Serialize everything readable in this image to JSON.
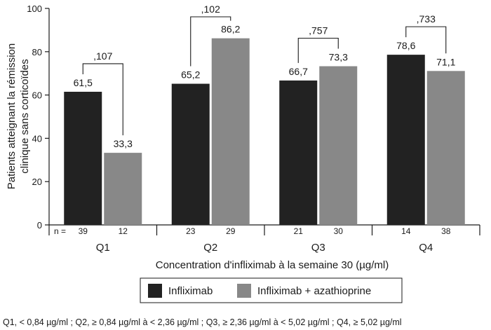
{
  "chart_data": {
    "type": "bar",
    "categories": [
      "Q1",
      "Q2",
      "Q3",
      "Q4"
    ],
    "series": [
      {
        "name": "Infliximab",
        "values": [
          61.5,
          65.2,
          66.7,
          78.6
        ],
        "labels": [
          "61,5",
          "65,2",
          "66,7",
          "78,6"
        ],
        "n": [
          "39",
          "23",
          "21",
          "14"
        ],
        "color": "#222222"
      },
      {
        "name": "Infliximab + azathioprine",
        "values": [
          33.3,
          86.2,
          73.3,
          71.1
        ],
        "labels": [
          "33,3",
          "86,2",
          "73,3",
          "71,1"
        ],
        "n": [
          "12",
          "29",
          "30",
          "38"
        ],
        "color": "#888888"
      }
    ],
    "p_values": [
      ",107",
      ",102",
      ",757",
      ",733"
    ],
    "n_prefix": "n =",
    "ylabel_line1": "Patients atteignant la rémission",
    "ylabel_line2": "clinique sans corticoïdes",
    "xlabel": "Concentration d'infliximab à la semaine 30 (µg/ml)",
    "ylim": [
      0,
      100
    ],
    "yticks": [
      0,
      20,
      40,
      60,
      80,
      100
    ],
    "legend_position": "bottom-center",
    "grid": false
  },
  "footnote": "Q1, < 0,84 µg/ml ; Q2, ≥ 0,84 µg/ml à < 2,36 µg/ml ; Q3, ≥ 2,36 µg/ml à < 5,02 µg/ml ; Q4, ≥ 5,02 µg/ml"
}
